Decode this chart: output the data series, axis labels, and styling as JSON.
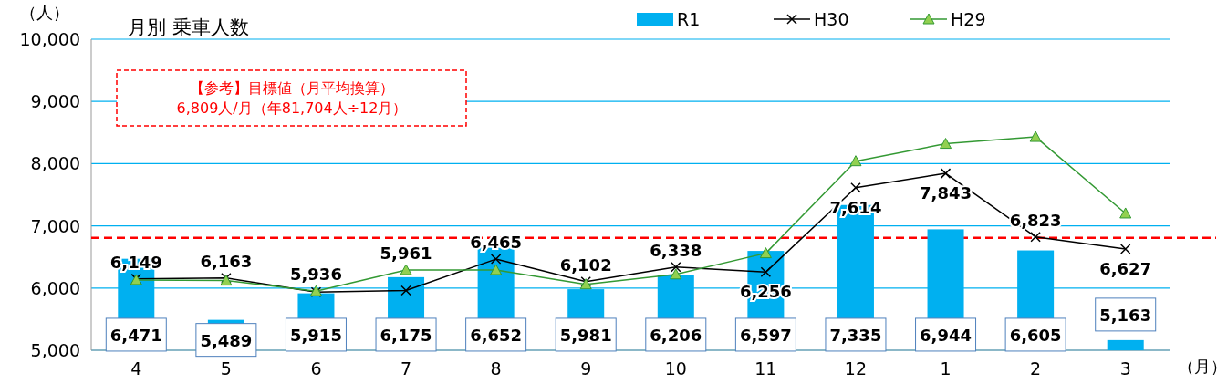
{
  "chart_data": {
    "type": "bar",
    "title": "月別  乗車人数",
    "ylabel": "（人）",
    "xlabel": "（月）",
    "categories": [
      "4",
      "5",
      "6",
      "7",
      "8",
      "9",
      "10",
      "11",
      "12",
      "1",
      "2",
      "3"
    ],
    "series": [
      {
        "name": "R1",
        "color": "#00b0f0",
        "values": [
          6471,
          5489,
          5915,
          6175,
          6652,
          5981,
          6206,
          6597,
          7335,
          6944,
          6605,
          5163
        ],
        "value_labels": [
          "6,471",
          "5,489",
          "5,915",
          "6,175",
          "6,652",
          "5,981",
          "6,206",
          "6,597",
          "7,335",
          "6,944",
          "6,605",
          "5,163"
        ]
      },
      {
        "name": "H30",
        "type": "line",
        "color": "#000000",
        "marker": "cross",
        "values": [
          6149,
          6163,
          5936,
          5961,
          6465,
          6102,
          6338,
          6256,
          7614,
          7843,
          6823,
          6627
        ],
        "value_labels": [
          "6,149",
          "6,163",
          "5,936",
          "5,961",
          "6,465",
          "6,102",
          "6,338",
          "6,256",
          "7,614",
          "7,843",
          "6,823",
          "6,627"
        ]
      },
      {
        "name": "H29",
        "type": "line",
        "color": "#339933",
        "marker": "triangle",
        "values": [
          6130,
          6120,
          5950,
          6290,
          6290,
          6060,
          6220,
          6560,
          8040,
          8320,
          8430,
          7200
        ]
      }
    ],
    "ylim": [
      5000,
      10000
    ],
    "yticks": [
      {
        "value": 5000,
        "label": "5,000"
      },
      {
        "value": 6000,
        "label": "6,000"
      },
      {
        "value": 7000,
        "label": "7,000"
      },
      {
        "value": 8000,
        "label": "8,000"
      },
      {
        "value": 9000,
        "label": "9,000"
      },
      {
        "value": 10000,
        "label": "10,000"
      }
    ],
    "grid": "y",
    "legend": "top",
    "ref_lines": [
      {
        "axis": "y",
        "value": 6809,
        "color": "#ff0000",
        "line_style": "dashed"
      }
    ],
    "annotations": [
      "【参考】目標値（月平均換算）",
      "6,809人/月（年81,704人÷12月）"
    ]
  }
}
